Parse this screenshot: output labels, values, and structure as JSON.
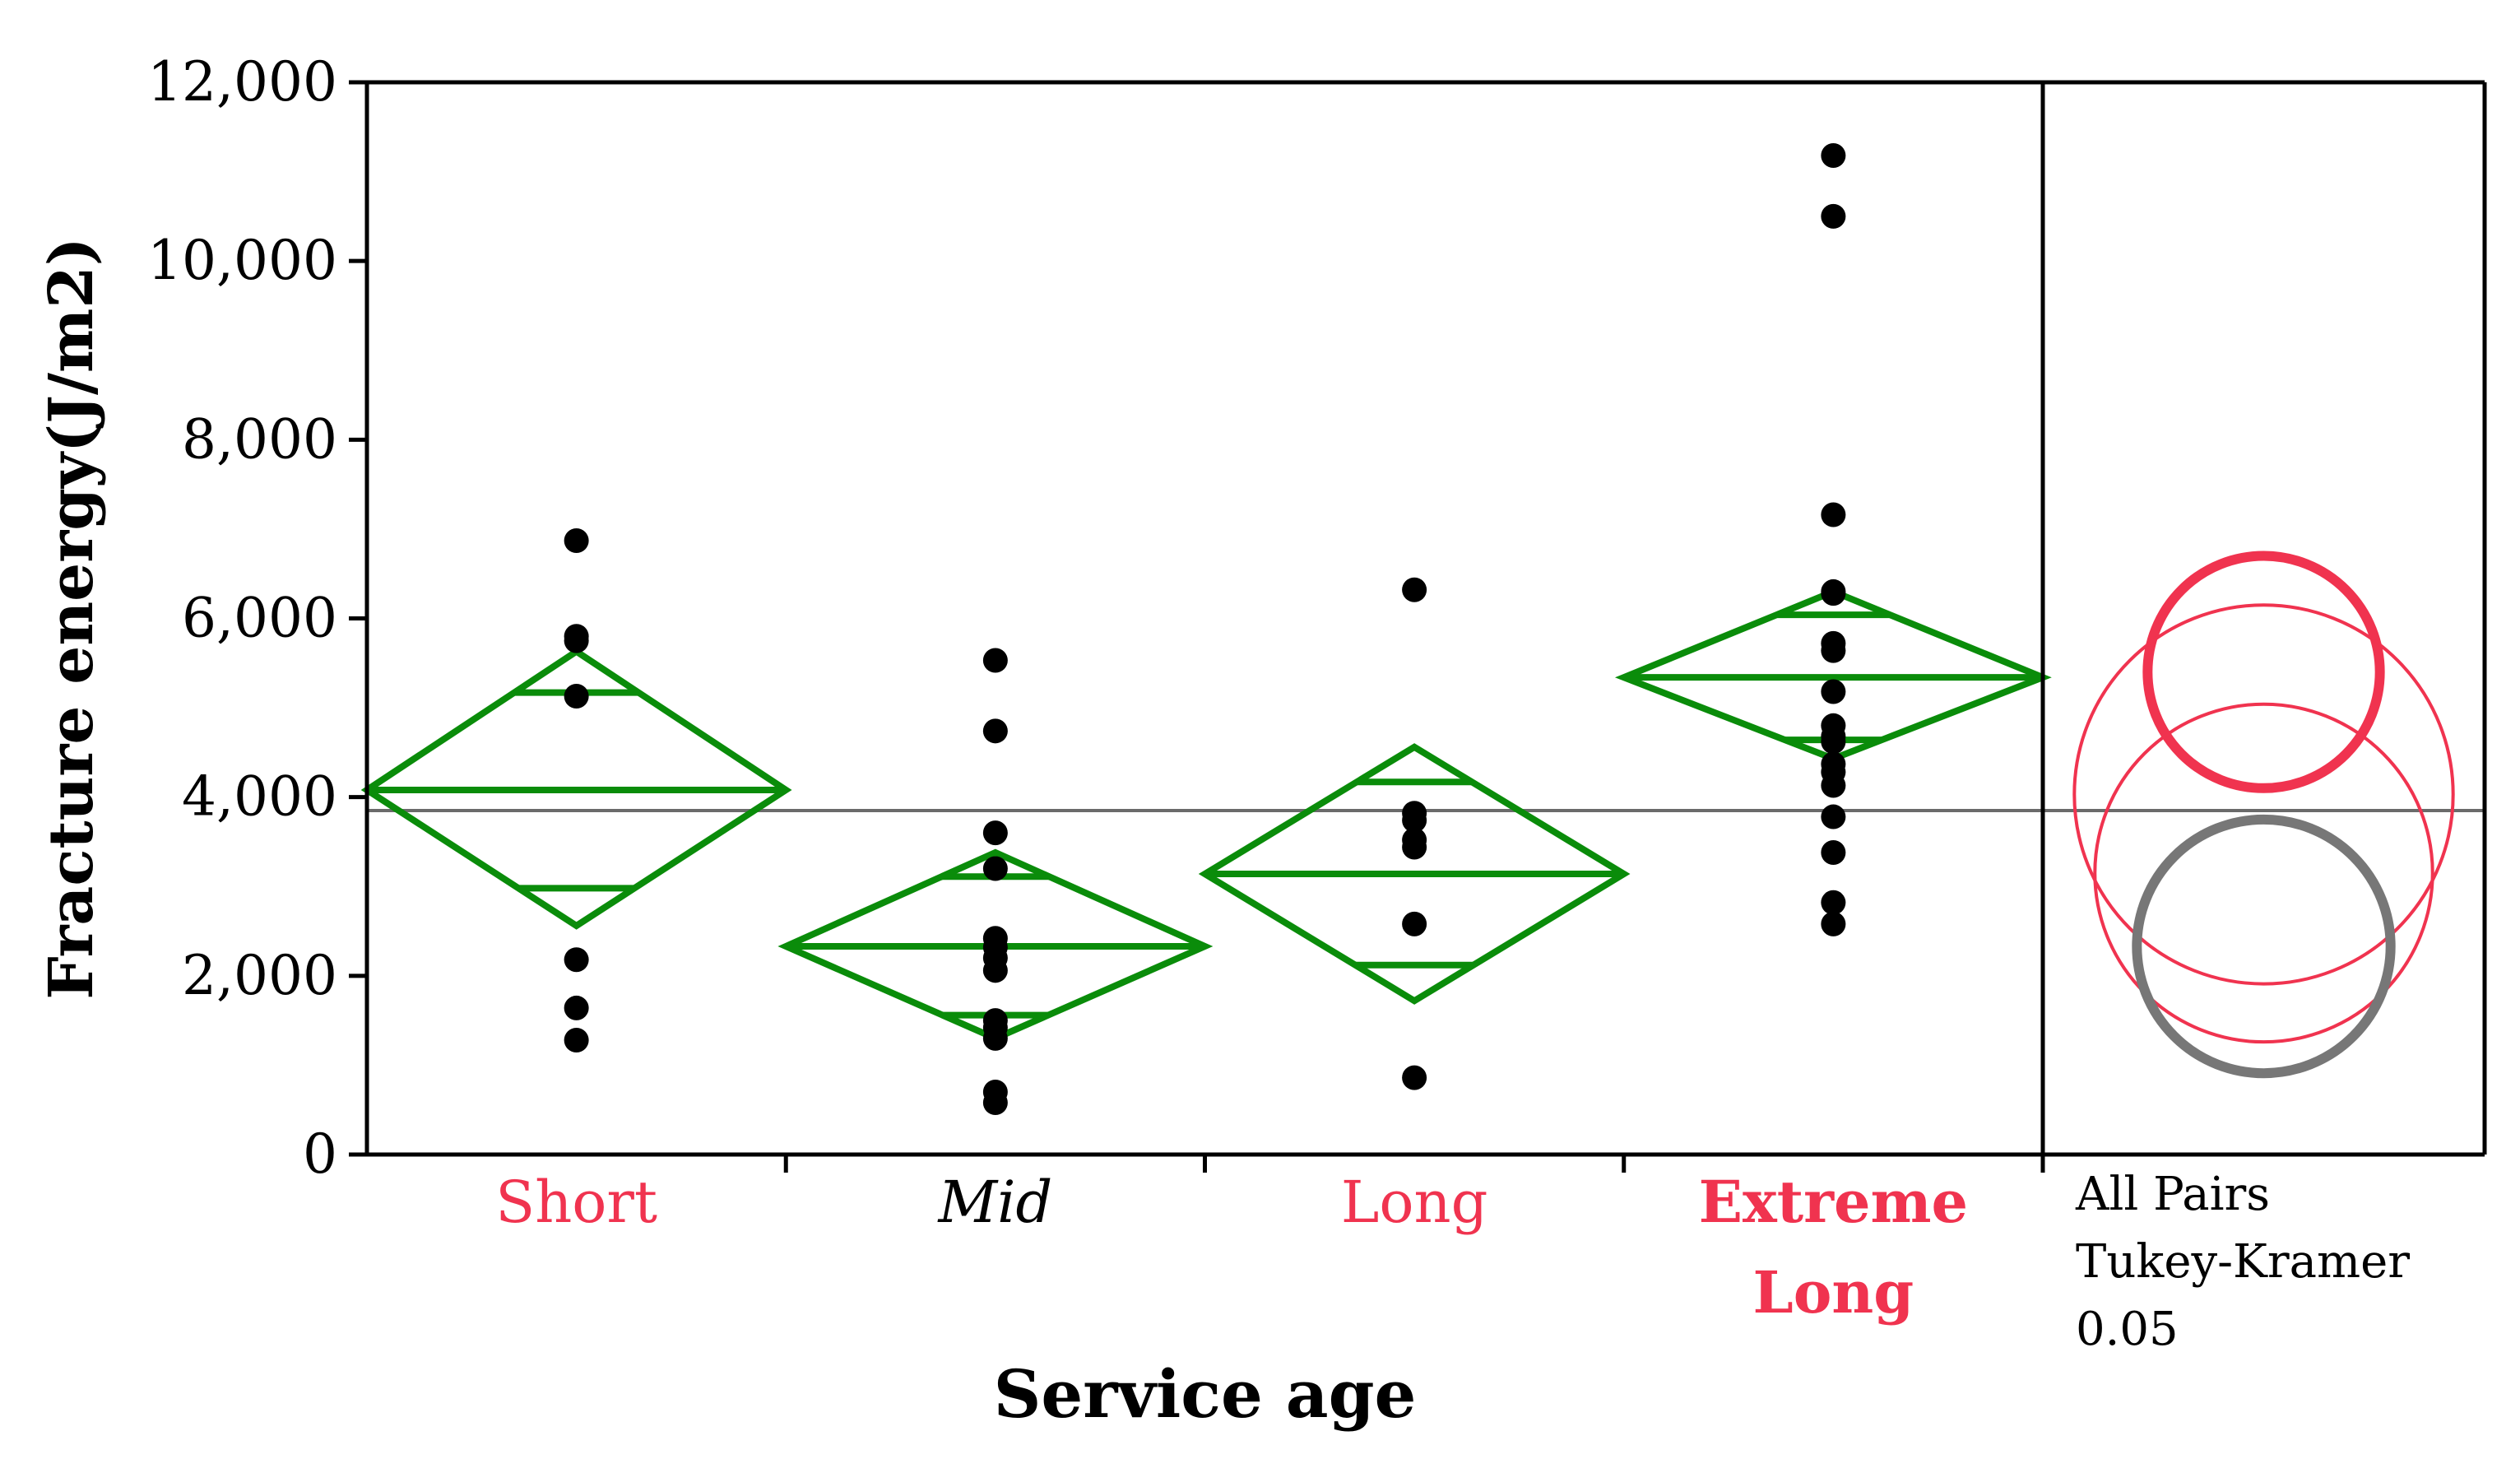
{
  "chart_data": {
    "type": "scatter",
    "xlabel": "Service age",
    "ylabel": "Fracture energy(J/m2)",
    "ylim": [
      0,
      12000
    ],
    "yticks": [
      0,
      2000,
      4000,
      6000,
      8000,
      10000,
      12000
    ],
    "ytick_labels": [
      "0",
      "2,000",
      "4,000",
      "6,000",
      "8,000",
      "10,000",
      "12,000"
    ],
    "categories": [
      {
        "label_lines": [
          "Short"
        ],
        "color": "#f0334f",
        "bold": false,
        "italic": false
      },
      {
        "label_lines": [
          "Mid"
        ],
        "color": "#000000",
        "bold": false,
        "italic": true
      },
      {
        "label_lines": [
          "Long"
        ],
        "color": "#f0334f",
        "bold": false,
        "italic": false
      },
      {
        "label_lines": [
          "Extreme",
          "Long"
        ],
        "color": "#f0334f",
        "bold": true,
        "italic": false
      }
    ],
    "points": [
      [
        6870,
        5800,
        5750,
        5130,
        2180,
        1640,
        1280
      ],
      [
        5530,
        4740,
        3600,
        3200,
        2420,
        2320,
        2200,
        2060,
        1500,
        1420,
        1300,
        700,
        580
      ],
      [
        6320,
        3820,
        3740,
        3520,
        3440,
        2580,
        860
      ],
      [
        11180,
        10500,
        7160,
        6300,
        6280,
        5720,
        5640,
        5180,
        4800,
        4680,
        4620,
        4370,
        4280,
        4130,
        3780,
        3380,
        2820,
        2580
      ]
    ],
    "means_diamonds": [
      {
        "mean": 4080,
        "lower": 2560,
        "upper": 5630,
        "lower_overlap": 2980,
        "upper_overlap": 5170
      },
      {
        "mean": 2330,
        "lower": 1300,
        "upper": 3380,
        "lower_overlap": 1560,
        "upper_overlap": 3110
      },
      {
        "mean": 3140,
        "lower": 1720,
        "upper": 4560,
        "lower_overlap": 2120,
        "upper_overlap": 4170
      },
      {
        "mean": 5340,
        "lower": 4430,
        "upper": 6300,
        "lower_overlap": 4640,
        "upper_overlap": 6040
      }
    ],
    "grand_mean": 3850,
    "diamond_color": "#0a8c0a",
    "point_color": "#000000",
    "comparison_circles": {
      "label_lines": [
        "All Pairs",
        "Tukey-Kramer",
        "0.05"
      ],
      "circles": [
        {
          "group": "Extreme Long",
          "center": 5400,
          "radius": 1300,
          "color": "#f0334f",
          "emphasis": "bold"
        },
        {
          "group": "Short",
          "center": 4030,
          "radius": 2120,
          "color": "#f0334f",
          "emphasis": "thin"
        },
        {
          "group": "Long",
          "center": 3150,
          "radius": 1890,
          "color": "#f0334f",
          "emphasis": "thin"
        },
        {
          "group": "Mid",
          "center": 2330,
          "radius": 1420,
          "color": "#777777",
          "emphasis": "selected"
        }
      ]
    }
  }
}
